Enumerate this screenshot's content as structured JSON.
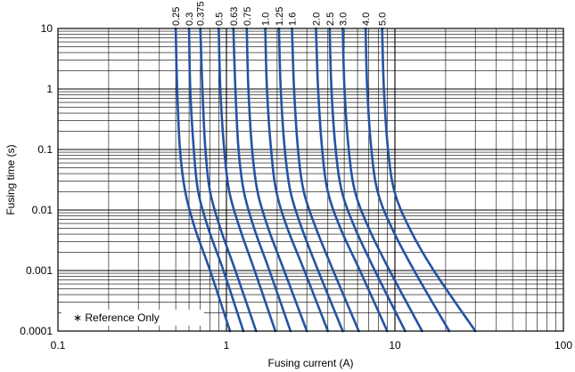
{
  "chart_data": {
    "type": "line",
    "title": "",
    "xlabel": "Fusing current (A)",
    "ylabel": "Fusing time (s)",
    "x_scale": "log",
    "y_scale": "log",
    "xlim": [
      0.1,
      100
    ],
    "ylim": [
      0.0001,
      10
    ],
    "x_tick_labels": [
      "0.1",
      "1",
      "10",
      "100"
    ],
    "y_tick_labels": [
      "10",
      "1",
      "0.1",
      "0.01",
      "0.001",
      "0.0001"
    ],
    "grid": true,
    "line_color": "#2453a4",
    "note": "∗ Reference Only",
    "series": [
      {
        "name": "0.25",
        "x": [
          0.5,
          0.51,
          0.53,
          0.57,
          0.65,
          0.8,
          1.05
        ],
        "y": [
          10,
          1,
          0.1,
          0.02,
          0.005,
          0.001,
          0.0001
        ]
      },
      {
        "name": "0.3",
        "x": [
          0.6,
          0.61,
          0.64,
          0.68,
          0.78,
          0.96,
          1.26
        ],
        "y": [
          10,
          1,
          0.1,
          0.02,
          0.005,
          0.001,
          0.0001
        ]
      },
      {
        "name": "0.375",
        "x": [
          0.7,
          0.72,
          0.75,
          0.8,
          0.92,
          1.13,
          1.5
        ],
        "y": [
          10,
          1,
          0.1,
          0.02,
          0.005,
          0.001,
          0.0001
        ]
      },
      {
        "name": "0.5",
        "x": [
          0.9,
          0.92,
          0.97,
          1.04,
          1.2,
          1.47,
          1.95
        ],
        "y": [
          10,
          1,
          0.1,
          0.02,
          0.005,
          0.001,
          0.0001
        ]
      },
      {
        "name": "0.63",
        "x": [
          1.1,
          1.13,
          1.18,
          1.27,
          1.46,
          1.8,
          2.4
        ],
        "y": [
          10,
          1,
          0.1,
          0.02,
          0.005,
          0.001,
          0.0001
        ]
      },
      {
        "name": "0.75",
        "x": [
          1.32,
          1.35,
          1.42,
          1.53,
          1.77,
          2.2,
          3.0
        ],
        "y": [
          10,
          1,
          0.1,
          0.02,
          0.005,
          0.001,
          0.0001
        ]
      },
      {
        "name": "1.0",
        "x": [
          1.7,
          1.74,
          1.84,
          1.98,
          2.3,
          2.9,
          4.0
        ],
        "y": [
          10,
          1,
          0.1,
          0.02,
          0.005,
          0.001,
          0.0001
        ]
      },
      {
        "name": "1.25",
        "x": [
          2.05,
          2.1,
          2.22,
          2.4,
          2.8,
          3.5,
          4.9
        ],
        "y": [
          10,
          1,
          0.1,
          0.02,
          0.005,
          0.001,
          0.0001
        ]
      },
      {
        "name": "1.6",
        "x": [
          2.45,
          2.52,
          2.66,
          2.88,
          3.4,
          4.3,
          6.1
        ],
        "y": [
          10,
          1,
          0.1,
          0.02,
          0.005,
          0.001,
          0.0001
        ]
      },
      {
        "name": "2.0",
        "x": [
          3.4,
          3.5,
          3.7,
          4.0,
          4.75,
          6.2,
          9.0
        ],
        "y": [
          10,
          1,
          0.1,
          0.02,
          0.005,
          0.001,
          0.0001
        ]
      },
      {
        "name": "2.5",
        "x": [
          4.1,
          4.2,
          4.45,
          4.85,
          5.8,
          7.6,
          11.5
        ],
        "y": [
          10,
          1,
          0.1,
          0.02,
          0.005,
          0.001,
          0.0001
        ]
      },
      {
        "name": "3.0",
        "x": [
          4.9,
          5.02,
          5.32,
          5.8,
          7.0,
          9.3,
          14.5
        ],
        "y": [
          10,
          1,
          0.1,
          0.02,
          0.005,
          0.001,
          0.0001
        ]
      },
      {
        "name": "4.0",
        "x": [
          6.7,
          6.85,
          7.25,
          7.9,
          9.6,
          13.0,
          21.0
        ],
        "y": [
          10,
          1,
          0.1,
          0.02,
          0.005,
          0.001,
          0.0001
        ]
      },
      {
        "name": "5.0",
        "x": [
          8.4,
          8.6,
          9.1,
          9.95,
          12.2,
          17.0,
          30.0
        ],
        "y": [
          10,
          1,
          0.1,
          0.02,
          0.005,
          0.001,
          0.0001
        ]
      }
    ]
  }
}
